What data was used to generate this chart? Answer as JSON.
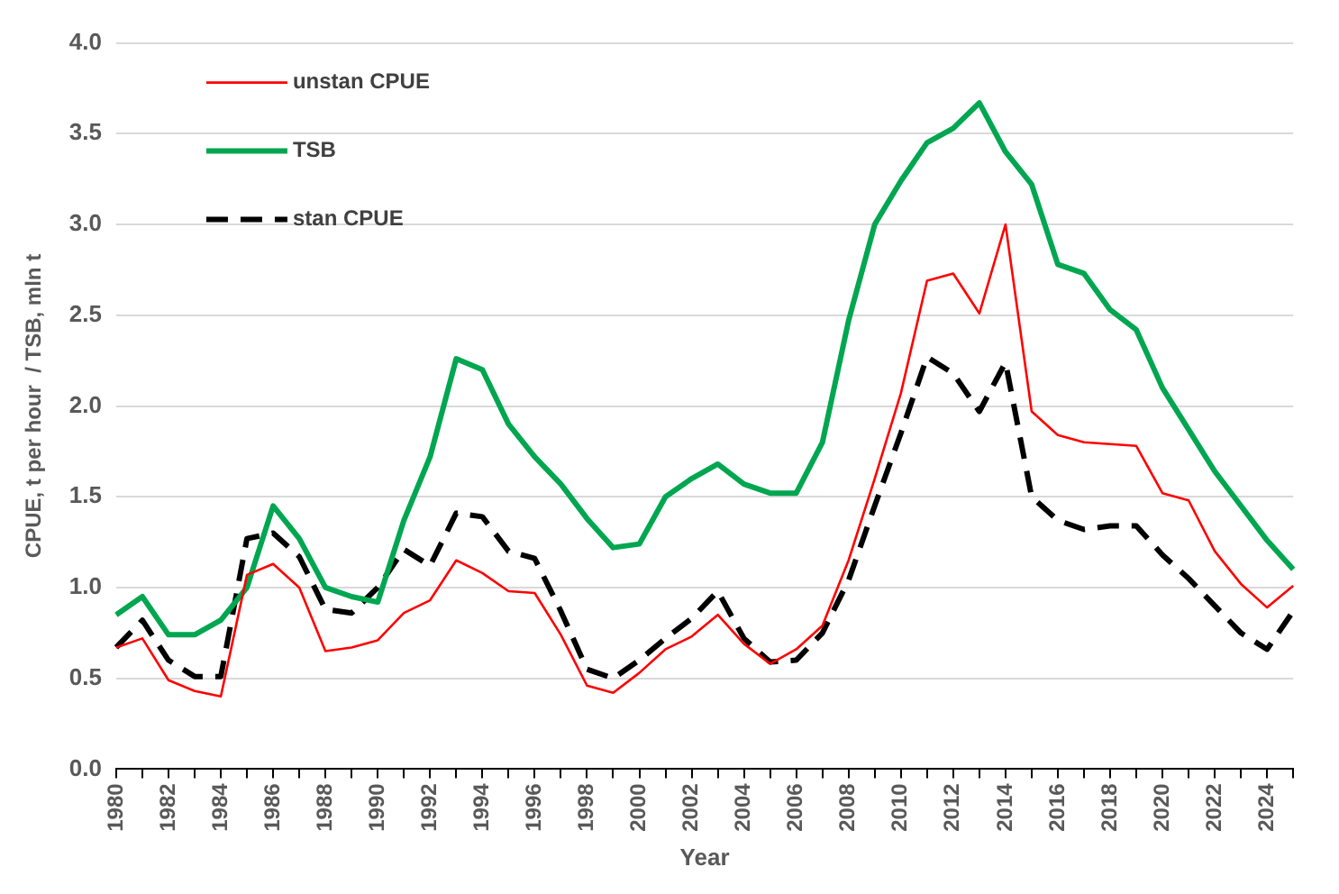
{
  "chart_data": {
    "type": "line",
    "xlabel": "Year",
    "ylabel": "CPUE, t per hour  / TSB, mln t",
    "categories": [
      "1980",
      null,
      "1982",
      null,
      "1984",
      null,
      "1986",
      null,
      "1988",
      null,
      "1990",
      null,
      "1992",
      null,
      "1994",
      null,
      "1996",
      null,
      "1998",
      null,
      "2000",
      null,
      "2002",
      null,
      "2004",
      null,
      "2006",
      null,
      "2008",
      null,
      "2010",
      null,
      "2012",
      null,
      "2014",
      null,
      "2016",
      null,
      "2018",
      null,
      "2020",
      null,
      "2022",
      null,
      "2024",
      null
    ],
    "series": [
      {
        "name": "unstan CPUE",
        "color": "#ff0000",
        "line_style": "solid",
        "values": [
          0.67,
          0.72,
          0.49,
          0.43,
          0.4,
          1.07,
          1.13,
          1.0,
          0.65,
          0.67,
          0.71,
          0.86,
          0.93,
          1.15,
          1.08,
          0.98,
          0.97,
          0.74,
          0.46,
          0.42,
          0.53,
          0.66,
          0.73,
          0.85,
          0.69,
          0.58,
          0.66,
          0.79,
          1.15,
          1.6,
          2.07,
          2.69,
          2.73,
          2.51,
          3.0,
          1.97,
          1.84,
          1.8,
          1.79,
          1.78,
          1.52,
          1.48,
          1.2,
          1.02,
          0.89,
          1.01
        ]
      },
      {
        "name": "TSB",
        "color": "#00a650",
        "line_style": "solid",
        "values": [
          0.85,
          0.95,
          0.74,
          0.74,
          0.82,
          1.0,
          1.45,
          1.27,
          1.0,
          0.95,
          0.92,
          1.37,
          1.72,
          2.26,
          2.2,
          1.9,
          1.72,
          1.57,
          1.38,
          1.22,
          1.24,
          1.5,
          1.6,
          1.68,
          1.57,
          1.52,
          1.52,
          1.8,
          2.47,
          3.0,
          3.24,
          3.45,
          3.53,
          3.67,
          3.4,
          3.22,
          2.78,
          2.73,
          2.53,
          2.42,
          2.1,
          1.87,
          1.64,
          1.45,
          1.26,
          1.1
        ]
      },
      {
        "name": "stan CPUE",
        "color": "#000000",
        "line_style": "dashed",
        "values": [
          0.67,
          0.82,
          0.6,
          0.51,
          0.51,
          1.27,
          1.3,
          1.17,
          0.88,
          0.86,
          1.0,
          1.21,
          1.12,
          1.41,
          1.39,
          1.2,
          1.16,
          0.87,
          0.55,
          0.5,
          0.6,
          0.72,
          0.83,
          0.98,
          0.72,
          0.59,
          0.6,
          0.75,
          1.04,
          1.45,
          1.85,
          2.27,
          2.18,
          1.97,
          2.24,
          1.5,
          1.37,
          1.32,
          1.34,
          1.34,
          1.18,
          1.05,
          0.9,
          0.75,
          0.66,
          0.87
        ]
      }
    ],
    "ylim": [
      0,
      4
    ],
    "yticks": [
      {
        "value": 0,
        "label": "0.0"
      },
      {
        "value": 0.5,
        "label": "0.5"
      },
      {
        "value": 1,
        "label": "1.0"
      },
      {
        "value": 1.5,
        "label": "1.5"
      },
      {
        "value": 2,
        "label": "2.0"
      },
      {
        "value": 2.5,
        "label": "2.5"
      },
      {
        "value": 3,
        "label": "3.0"
      },
      {
        "value": 3.5,
        "label": "3.5"
      },
      {
        "value": 4,
        "label": "4.0"
      }
    ],
    "grid": "y",
    "legend": "top left",
    "marker": "none"
  }
}
